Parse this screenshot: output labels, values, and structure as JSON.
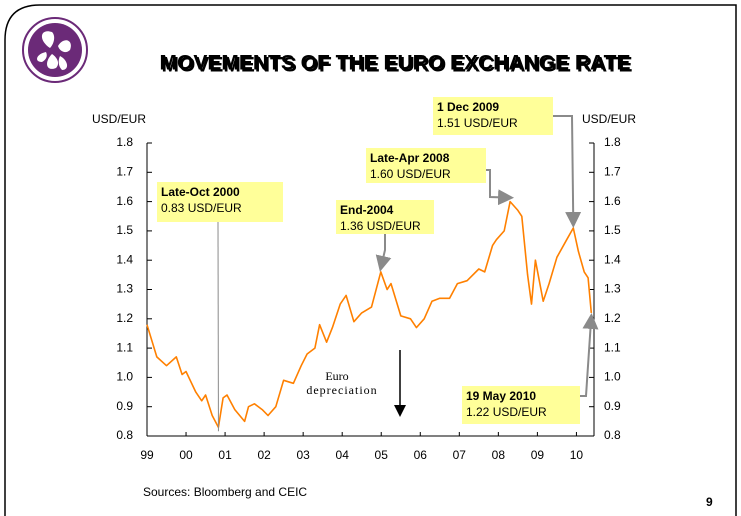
{
  "chart_data": {
    "type": "line",
    "title": "MOVEMENTS OF THE EURO EXCHANGE RATE",
    "ylabel": "USD/EUR",
    "y2label": "USD/EUR",
    "source": "Sources: Bloomberg and CEIC",
    "page_number": "9",
    "note": [
      "Euro",
      "depreciation"
    ],
    "xlim": [
      1999,
      2010.45
    ],
    "xticks": [
      {
        "value": 1999,
        "label": "99"
      },
      {
        "value": 2000,
        "label": "00"
      },
      {
        "value": 2001,
        "label": "01"
      },
      {
        "value": 2002,
        "label": "02"
      },
      {
        "value": 2003,
        "label": "03"
      },
      {
        "value": 2004,
        "label": "04"
      },
      {
        "value": 2005,
        "label": "05"
      },
      {
        "value": 2006,
        "label": "06"
      },
      {
        "value": 2007,
        "label": "07"
      },
      {
        "value": 2008,
        "label": "08"
      },
      {
        "value": 2009,
        "label": "09"
      },
      {
        "value": 2010,
        "label": "10"
      }
    ],
    "ylim": [
      0.8,
      1.8
    ],
    "yticks": [
      0.8,
      0.9,
      {
        "value": 1,
        "label": "1.0"
      },
      1.1,
      1.2,
      1.3,
      1.4,
      1.5,
      1.6,
      1.7,
      1.8
    ],
    "y2lim": [
      0.8,
      1.8
    ],
    "y2ticks": [
      0.8,
      0.9,
      {
        "value": 1,
        "label": "1.0"
      },
      1.1,
      1.2,
      1.3,
      1.4,
      1.5,
      1.6,
      1.7,
      1.8
    ],
    "x": [
      1999.0,
      1999.25,
      1999.5,
      1999.75,
      1999.9,
      2000.0,
      2000.25,
      2000.4,
      2000.5,
      2000.67,
      2000.83,
      2000.95,
      2001.05,
      2001.25,
      2001.5,
      2001.6,
      2001.75,
      2001.95,
      2002.1,
      2002.3,
      2002.5,
      2002.75,
      2002.95,
      2003.1,
      2003.3,
      2003.42,
      2003.6,
      2003.75,
      2003.95,
      2004.1,
      2004.3,
      2004.5,
      2004.75,
      2004.99,
      2005.15,
      2005.25,
      2005.5,
      2005.75,
      2005.9,
      2006.1,
      2006.3,
      2006.5,
      2006.75,
      2006.95,
      2007.2,
      2007.5,
      2007.65,
      2007.85,
      2007.95,
      2008.15,
      2008.3,
      2008.5,
      2008.6,
      2008.75,
      2008.85,
      2008.95,
      2009.15,
      2009.3,
      2009.5,
      2009.75,
      2009.92,
      2010.05,
      2010.2,
      2010.3,
      2010.38
    ],
    "series": [
      {
        "name": "USD/EUR",
        "color": "#ff8000",
        "values": [
          1.18,
          1.07,
          1.04,
          1.07,
          1.01,
          1.02,
          0.95,
          0.92,
          0.94,
          0.87,
          0.83,
          0.93,
          0.94,
          0.89,
          0.85,
          0.9,
          0.91,
          0.89,
          0.87,
          0.9,
          0.99,
          0.98,
          1.04,
          1.08,
          1.1,
          1.18,
          1.12,
          1.17,
          1.25,
          1.28,
          1.19,
          1.22,
          1.24,
          1.36,
          1.3,
          1.32,
          1.21,
          1.2,
          1.17,
          1.2,
          1.26,
          1.27,
          1.27,
          1.32,
          1.33,
          1.37,
          1.36,
          1.45,
          1.47,
          1.5,
          1.6,
          1.57,
          1.55,
          1.35,
          1.25,
          1.4,
          1.26,
          1.32,
          1.41,
          1.47,
          1.51,
          1.43,
          1.36,
          1.34,
          1.22
        ]
      }
    ],
    "annotations": [
      {
        "title": "Late-Oct 2000",
        "text": "0.83 USD/EUR",
        "x": 2000.83,
        "y": 0.83
      },
      {
        "title": "End-2004",
        "text": "1.36 USD/EUR",
        "x": 2004.99,
        "y": 1.36
      },
      {
        "title": "Late-Apr 2008",
        "text": "1.60 USD/EUR",
        "x": 2008.3,
        "y": 1.6
      },
      {
        "title": "1 Dec 2009",
        "text": "1.51 USD/EUR",
        "x": 2009.92,
        "y": 1.51
      },
      {
        "title": "19 May 2010",
        "text": "1.22 USD/EUR",
        "x": 2010.38,
        "y": 1.22
      }
    ]
  }
}
